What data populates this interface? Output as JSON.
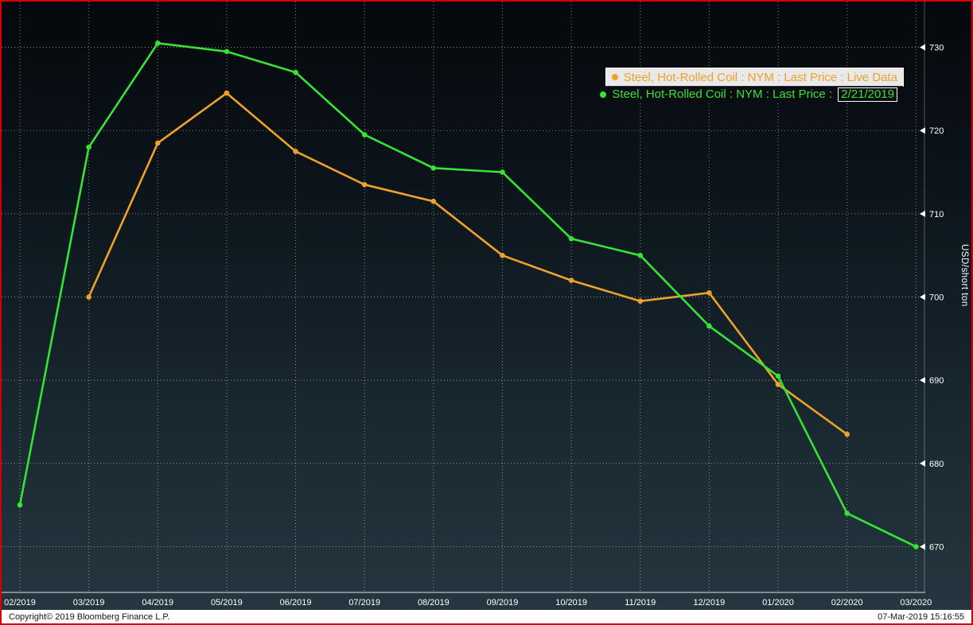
{
  "legend": {
    "row2_prefix": "Steel, Hot-Rolled Coil : NYM : Last Price : ",
    "row2_date": "2/21/2019"
  },
  "footer": {
    "copyright": "Copyright© 2019 Bloomberg Finance L.P.",
    "timestamp": "07-Mar-2019 15:16:55"
  },
  "colors": {
    "live_series": "#eda229",
    "snapshot_series": "#35e335",
    "grid": "rgba(255,255,255,0.5)",
    "axis_text": "#ffffff",
    "frame_border": "#d40000"
  },
  "chart_data": {
    "type": "line",
    "title": "",
    "ylabel": "USD/short ton",
    "legend_position": "top-right",
    "grid": "dotted",
    "x": [
      "02/2019",
      "03/2019",
      "04/2019",
      "05/2019",
      "06/2019",
      "07/2019",
      "08/2019",
      "09/2019",
      "10/2019",
      "11/2019",
      "12/2019",
      "01/2020",
      "02/2020",
      "03/2020"
    ],
    "yticks": [
      670,
      680,
      690,
      700,
      710,
      720,
      730
    ],
    "ylim": [
      664.5,
      735.5
    ],
    "series": [
      {
        "name": "Steel, Hot-Rolled Coil : NYM : Last Price : Live Data",
        "color": "#eda229",
        "values": [
          null,
          700,
          718.5,
          724.5,
          717.5,
          713.5,
          711.5,
          705,
          702,
          699.5,
          700.5,
          689.5,
          683.5,
          null
        ]
      },
      {
        "name": "Steel, Hot-Rolled Coil : NYM : Last Price : 2/21/2019",
        "color": "#35e335",
        "values": [
          675,
          718,
          730.5,
          729.5,
          727,
          719.5,
          715.5,
          715,
          707,
          705,
          696.5,
          690.5,
          674,
          670
        ]
      }
    ]
  }
}
